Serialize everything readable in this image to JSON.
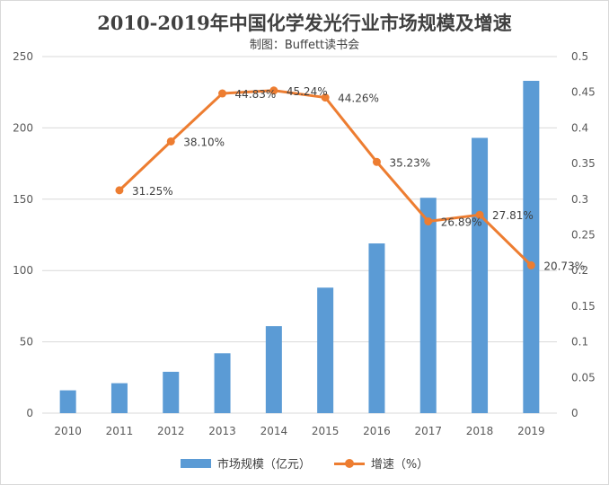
{
  "colors": {
    "bar": "#5b9bd5",
    "line": "#ed7d31",
    "grid": "#d9d9d9",
    "text": "#595959"
  },
  "chart_data": {
    "type": "bar",
    "title": "2010-2019年中国化学发光行业市场规模及增速",
    "subtitle": "制图：Buffett读书会",
    "categories": [
      "2010",
      "2011",
      "2012",
      "2013",
      "2014",
      "2015",
      "2016",
      "2017",
      "2018",
      "2019"
    ],
    "series": [
      {
        "name": "市场规模（亿元）",
        "type": "bar",
        "axis": "left",
        "values": [
          16,
          21,
          29,
          42,
          61,
          88,
          119,
          151,
          193,
          233
        ]
      },
      {
        "name": "增速（%）",
        "type": "line",
        "axis": "right",
        "values": [
          null,
          0.3125,
          0.381,
          0.4483,
          0.4524,
          0.4426,
          0.3523,
          0.2689,
          0.2781,
          0.2073
        ],
        "labels": [
          "",
          "31.25%",
          "38.10%",
          "44.83%",
          "45.24%",
          "44.26%",
          "35.23%",
          "26.89%",
          "27.81%",
          "20.73%"
        ]
      }
    ],
    "y_left": {
      "min": 0,
      "max": 250,
      "ticks": [
        "0",
        "50",
        "100",
        "150",
        "200",
        "250"
      ]
    },
    "y_right": {
      "min": 0,
      "max": 0.5,
      "ticks": [
        "0",
        "0.05",
        "0.1",
        "0.15",
        "0.2",
        "0.25",
        "0.3",
        "0.35",
        "0.4",
        "0.45",
        "0.5"
      ]
    },
    "grid": true,
    "legend_position": "bottom"
  }
}
